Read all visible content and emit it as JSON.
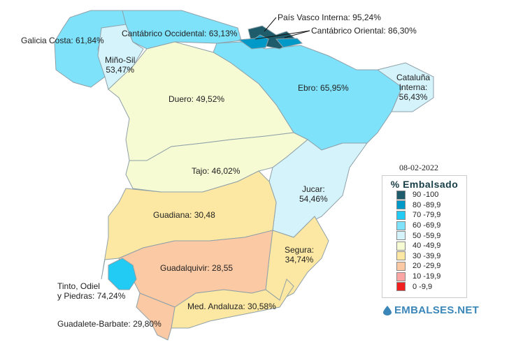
{
  "date": "08-02-2022",
  "legend": {
    "title": "% Embalsado",
    "items": [
      {
        "label": "90 -100",
        "color": "#1e5c6b"
      },
      {
        "label": "80 -89,9",
        "color": "#0099c8"
      },
      {
        "label": "70 -79,9",
        "color": "#22cbf3"
      },
      {
        "label": "60 -69,9",
        "color": "#7ee2fb"
      },
      {
        "label": "50 -59,9",
        "color": "#d5f3fb"
      },
      {
        "label": "40 -49,9",
        "color": "#f6fbd4"
      },
      {
        "label": "30 -39,9",
        "color": "#fde8a3"
      },
      {
        "label": "20 -29,9",
        "color": "#fcc9a5"
      },
      {
        "label": "10 -19,9",
        "color": "#fba5a5"
      },
      {
        "label": "0 -9,9",
        "color": "#f02020"
      }
    ]
  },
  "brand": "EMBALSES.NET",
  "regions": {
    "galicia": "Galicia Costa: 61,84%",
    "minosil_name": "Miño-Sil",
    "minosil_val": "53,47%",
    "cant_occ": "Cantábrico Occidental: 63,13%",
    "pais_vasco": "País Vasco Interna: 95,24%",
    "cant_ori": "Cantábrico Oriental: 86,30%",
    "cataluna_name": "Cataluña",
    "cataluna_name2": "Interna:",
    "cataluna_val": "56,43%",
    "ebro": "Ebro: 65,95%",
    "duero": "Duero: 49,52%",
    "tajo": "Tajo: 46,02%",
    "jucar_name": "Jucar:",
    "jucar_val": "54,46%",
    "guadiana": "Guadiana: 30,48",
    "segura_name": "Segura:",
    "segura_val": "34,74%",
    "guadalquivir": "Guadalquivir: 28,55",
    "tinto_name": "Tinto, Odiel",
    "tinto_val": "y Piedras: 74,24%",
    "med_andaluza": "Med. Andaluza: 30,58%",
    "guadalete": "Guadalete-Barbate: 29,80%"
  }
}
